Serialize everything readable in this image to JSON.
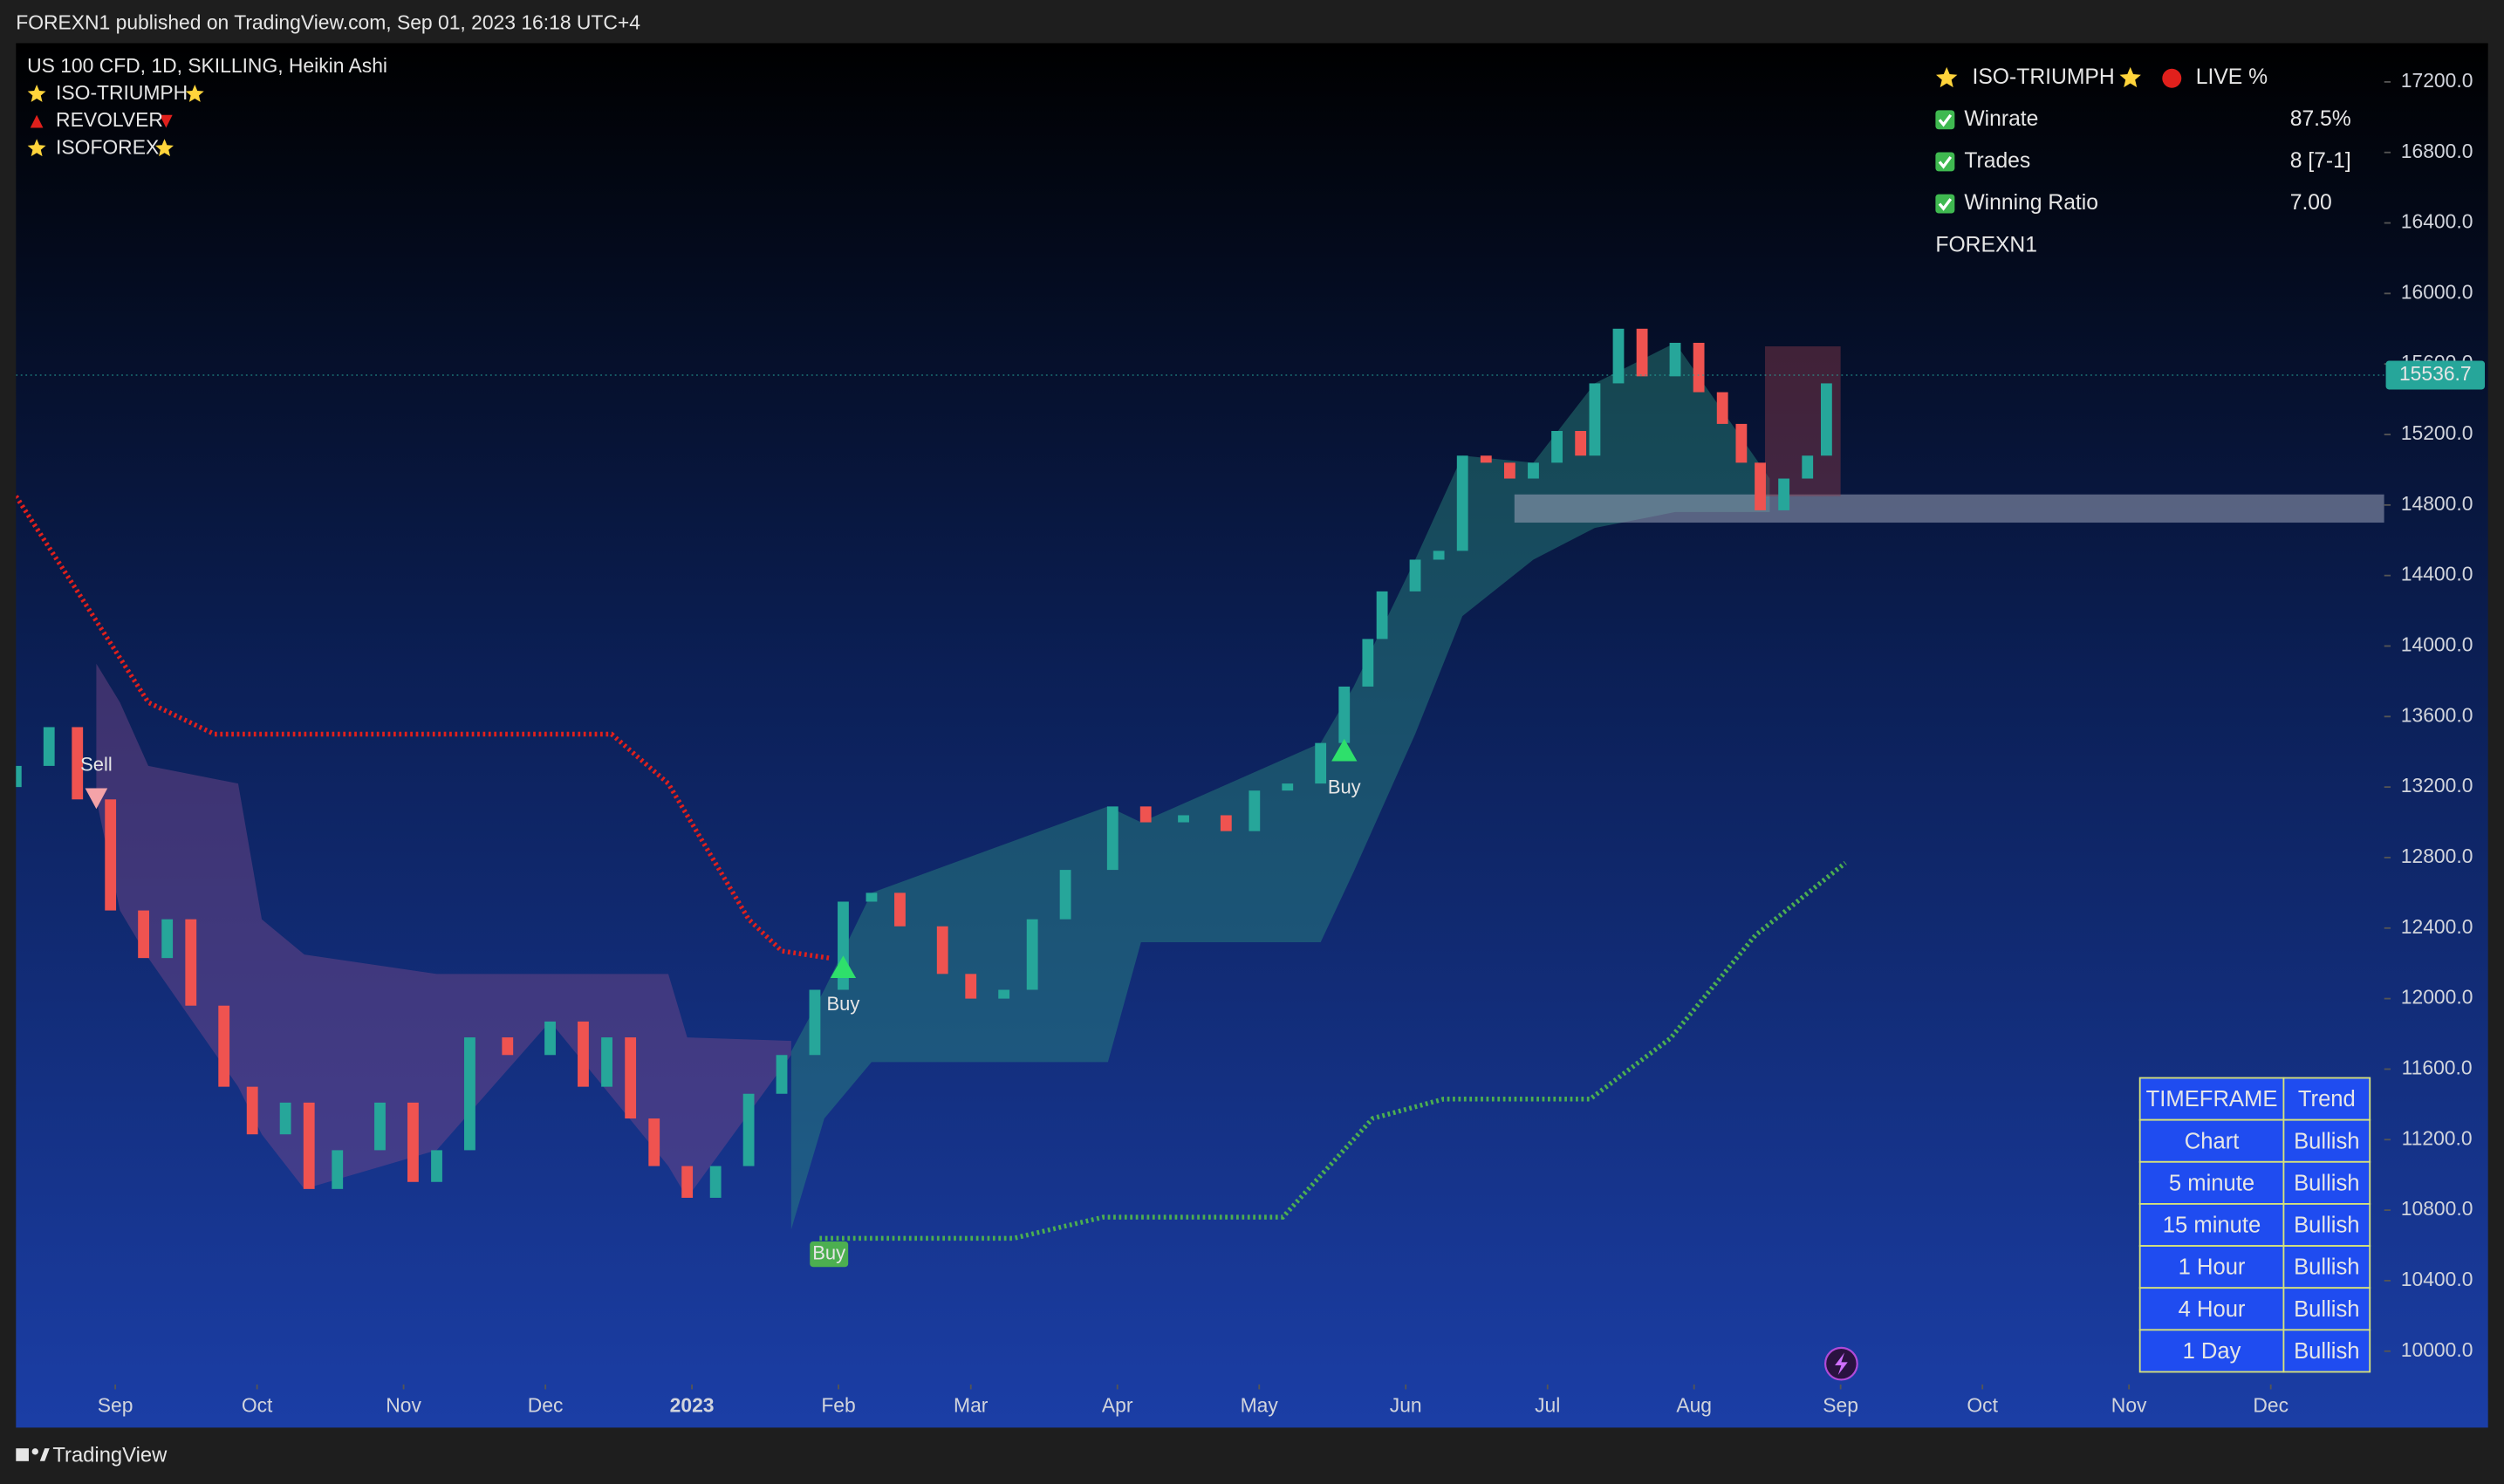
{
  "header": {
    "text": "FOREXN1 published on TradingView.com, Sep 01, 2023 16:18 UTC+4"
  },
  "footer": {
    "text": "TradingView"
  },
  "legend": {
    "symbol": "US 100 CFD, 1D, SKILLING, Heikin Ashi",
    "indicators": [
      "ISO-TRIUMPH",
      "REVOLVER",
      "ISOFOREX"
    ]
  },
  "info_panel": {
    "title": "ISO-TRIUMPH",
    "status": "LIVE %",
    "rows": [
      [
        "Winrate",
        "87.5%"
      ],
      [
        "Trades",
        "8 [7-1]"
      ],
      [
        "Winning Ratio",
        "7.00"
      ]
    ],
    "author": "FOREXN1"
  },
  "trend_table": {
    "header": [
      "TIMEFRAME",
      "Trend"
    ],
    "rows": [
      [
        "Chart",
        "Bullish"
      ],
      [
        "5 minute",
        "Bullish"
      ],
      [
        "15 minute",
        "Bullish"
      ],
      [
        "1 Hour",
        "Bullish"
      ],
      [
        "4 Hour",
        "Bullish"
      ],
      [
        "1 Day",
        "Bullish"
      ]
    ]
  },
  "chart_data": {
    "type": "candlestick",
    "xlim": [
      -21,
      480
    ],
    "ylim": [
      9820,
      17420
    ],
    "xticks": [
      {
        "value": 0,
        "label": "Sep"
      },
      {
        "value": 30,
        "label": "Oct"
      },
      {
        "value": 61,
        "label": "Nov"
      },
      {
        "value": 91,
        "label": "Dec"
      },
      {
        "value": 122,
        "label": "2023"
      },
      {
        "value": 153,
        "label": "Feb"
      },
      {
        "value": 181,
        "label": "Mar"
      },
      {
        "value": 212,
        "label": "Apr"
      },
      {
        "value": 242,
        "label": "May"
      },
      {
        "value": 273,
        "label": "Jun"
      },
      {
        "value": 303,
        "label": "Jul"
      },
      {
        "value": 334,
        "label": "Aug"
      },
      {
        "value": 365,
        "label": "Sep"
      },
      {
        "value": 395,
        "label": "Oct"
      },
      {
        "value": 426,
        "label": "Nov"
      },
      {
        "value": 456,
        "label": "Dec"
      }
    ],
    "yticks": [
      {
        "value": 10000,
        "label": "10000.0"
      },
      {
        "value": 10400,
        "label": "10400.0"
      },
      {
        "value": 10800,
        "label": "10800.0"
      },
      {
        "value": 11200,
        "label": "11200.0"
      },
      {
        "value": 11600,
        "label": "11600.0"
      },
      {
        "value": 12000,
        "label": "12000.0"
      },
      {
        "value": 12400,
        "label": "12400.0"
      },
      {
        "value": 12800,
        "label": "12800.0"
      },
      {
        "value": 13200,
        "label": "13200.0"
      },
      {
        "value": 13600,
        "label": "13600.0"
      },
      {
        "value": 14000,
        "label": "14000.0"
      },
      {
        "value": 14400,
        "label": "14400.0"
      },
      {
        "value": 14800,
        "label": "14800.0"
      },
      {
        "value": 15200,
        "label": "15200.0"
      },
      {
        "value": 15600,
        "label": "15600.0"
      },
      {
        "value": 16000,
        "label": "16000.0"
      },
      {
        "value": 16400,
        "label": "16400.0"
      },
      {
        "value": 16800,
        "label": "16800.0"
      },
      {
        "value": 17200,
        "label": "17200.0"
      }
    ],
    "up_color": "#26a69a",
    "down_color": "#ef5350",
    "x": [
      -21,
      -14,
      -8,
      -1,
      6,
      11,
      16,
      23,
      29,
      36,
      41,
      47,
      56,
      63,
      68,
      75,
      83,
      92,
      99,
      104,
      109,
      114,
      121,
      127,
      134,
      141,
      148,
      154,
      160,
      166,
      175,
      181,
      188,
      194,
      201,
      211,
      218,
      226,
      235,
      241,
      248,
      255,
      260,
      265,
      268,
      275,
      280,
      285,
      290,
      295,
      300,
      305,
      310,
      313,
      318,
      323,
      330,
      335,
      340,
      344,
      348,
      353,
      358,
      362
    ],
    "open": [
      13200,
      13320,
      13540,
      13130,
      12500,
      12230,
      12450,
      11960,
      11500,
      11230,
      11410,
      10920,
      11140,
      11410,
      10960,
      11140,
      11780,
      11680,
      11870,
      11500,
      11780,
      11320,
      11050,
      10870,
      11050,
      11460,
      11680,
      12050,
      12550,
      12600,
      12410,
      12140,
      12000,
      12050,
      12450,
      12730,
      13090,
      13000,
      13040,
      12950,
      13180,
      13220,
      13450,
      13770,
      14040,
      14310,
      14490,
      14540,
      15080,
      15040,
      14950,
      15040,
      15220,
      15080,
      15490,
      15800,
      15530,
      15720,
      15440,
      15260,
      15040,
      14770,
      14950,
      15080
    ],
    "close": [
      13320,
      13540,
      13130,
      12500,
      12230,
      12450,
      11960,
      11500,
      11230,
      11410,
      10920,
      11140,
      11410,
      10960,
      11140,
      11780,
      11680,
      11870,
      11500,
      11780,
      11320,
      11050,
      10870,
      11050,
      11460,
      11680,
      12050,
      12550,
      12600,
      12410,
      12140,
      12000,
      12050,
      12450,
      12730,
      13090,
      13000,
      13040,
      12950,
      13180,
      13220,
      13450,
      13770,
      14040,
      14310,
      14490,
      14540,
      15080,
      15040,
      14950,
      15040,
      15220,
      15080,
      15490,
      15800,
      15530,
      15720,
      15440,
      15260,
      15040,
      14770,
      14950,
      15080,
      15490
    ],
    "bands": [
      {
        "color": "#7a4a8a",
        "x": [
          -4,
          1,
          7,
          26,
          31,
          40,
          68,
          92,
          117,
          121,
          143
        ],
        "upper": [
          13900,
          13680,
          13320,
          13220,
          12450,
          12250,
          12140,
          12140,
          12140,
          11780,
          11760
        ],
        "lower": [
          13130,
          12500,
          12230,
          11500,
          11230,
          10920,
          11140,
          11870,
          11050,
          10870,
          11680
        ]
      },
      {
        "color": "#2a8a7f",
        "x": [
          143,
          150,
          160,
          210,
          217,
          255,
          262,
          275,
          285,
          300,
          313,
          330,
          350
        ],
        "upper": [
          11700,
          12050,
          12600,
          13090,
          13000,
          13450,
          13770,
          14490,
          15080,
          15040,
          15490,
          15720,
          14950
        ],
        "lower": [
          10690,
          11320,
          11640,
          11640,
          12320,
          12320,
          12720,
          13500,
          14170,
          14490,
          14670,
          14760,
          14760
        ]
      }
    ],
    "lines": [
      {
        "color": "#e0201c",
        "x": [
          -21,
          -8,
          7,
          21,
          105,
          117,
          134,
          141,
          151
        ],
        "values": [
          14850,
          14310,
          13680,
          13500,
          13500,
          13220,
          12450,
          12270,
          12230
        ]
      },
      {
        "color": "#4caf50",
        "x": [
          149,
          190,
          209,
          247,
          266,
          281,
          312,
          329,
          347,
          366
        ],
        "values": [
          10640,
          10640,
          10760,
          10760,
          11320,
          11430,
          11430,
          11775,
          12360,
          12770
        ]
      }
    ],
    "zone": {
      "start": 296,
      "top": 14860,
      "bottom": 14700
    },
    "box": {
      "start": 349,
      "end": 365,
      "top": 15700,
      "bottom": 14850
    },
    "last_price": 15536.7,
    "signals": [
      {
        "label": "Sell",
        "x": -4,
        "y": 13130
      },
      {
        "label": "Buy",
        "x": 154,
        "y": 12180
      },
      {
        "label": "Buy",
        "x": 260,
        "y": 13410
      },
      {
        "label": "Buy",
        "x": 151,
        "y": 10550
      }
    ]
  }
}
